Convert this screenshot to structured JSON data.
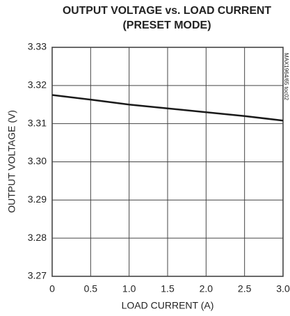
{
  "chart_data": {
    "type": "line",
    "title": [
      "OUTPUT VOLTAGE vs. LOAD CURRENT",
      "(PRESET MODE)"
    ],
    "xlabel": "LOAD CURRENT (A)",
    "ylabel": "OUTPUT VOLTAGE (V)",
    "annotation": "MAX1964/65 toc02",
    "x": [
      0,
      0.5,
      1,
      1.5,
      2,
      2.5,
      3
    ],
    "series": [
      {
        "name": "OUTPUT VOLTAGE",
        "color": "#1a1a1a",
        "values": [
          3.3175,
          3.3163,
          3.315,
          3.314,
          3.313,
          3.312,
          3.3108
        ]
      }
    ],
    "xlim": [
      0,
      3
    ],
    "ylim": [
      3.27,
      3.33
    ],
    "xticks": [
      0,
      0.5,
      {
        "value": 1,
        "label": "1.0"
      },
      1.5,
      {
        "value": 2,
        "label": "2.0"
      },
      2.5,
      {
        "value": 3,
        "label": "3.0"
      }
    ],
    "yticks": [
      3.27,
      3.28,
      3.29,
      {
        "value": 3.3,
        "label": "3.30"
      },
      3.31,
      3.32,
      3.33
    ],
    "grid": true
  }
}
